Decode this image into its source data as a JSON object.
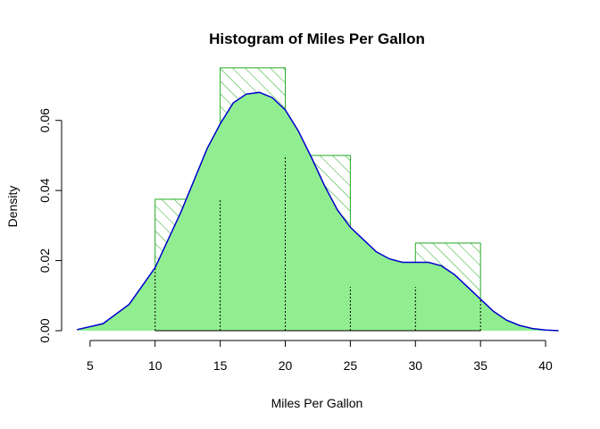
{
  "chart_data": {
    "type": "histogram",
    "title": "Histogram of Miles Per Gallon",
    "xlabel": "Miles Per Gallon",
    "ylabel": "Density",
    "xlim": [
      3.5,
      41.3
    ],
    "ylim": [
      0,
      0.0765
    ],
    "x_ticks": [
      "5",
      "10",
      "15",
      "20",
      "25",
      "30",
      "35",
      "40"
    ],
    "y_ticks": [
      "0.00",
      "0.02",
      "0.04",
      "0.06"
    ],
    "bins": [
      {
        "from": 10,
        "to": 15,
        "density": 0.0375
      },
      {
        "from": 15,
        "to": 20,
        "density": 0.075
      },
      {
        "from": 20,
        "to": 25,
        "density": 0.05
      },
      {
        "from": 25,
        "to": 30,
        "density": 0.0125
      },
      {
        "from": 30,
        "to": 35,
        "density": 0.025
      }
    ],
    "density_curve": {
      "x": [
        4,
        6,
        8,
        10,
        12,
        14,
        15,
        16,
        17,
        18,
        19,
        20,
        21,
        22,
        23,
        24,
        25,
        26,
        27,
        28,
        29,
        30,
        31,
        32,
        33,
        34,
        35,
        36,
        37,
        38,
        39,
        40,
        41
      ],
      "y": [
        0.0003,
        0.002,
        0.0075,
        0.018,
        0.034,
        0.052,
        0.059,
        0.065,
        0.0675,
        0.068,
        0.0665,
        0.063,
        0.057,
        0.0495,
        0.0415,
        0.0345,
        0.0295,
        0.026,
        0.0225,
        0.0205,
        0.0195,
        0.0195,
        0.0195,
        0.0185,
        0.016,
        0.0125,
        0.009,
        0.0055,
        0.003,
        0.0015,
        0.0006,
        0.0002,
        0
      ]
    },
    "colors": {
      "fill": "#90EE90",
      "curve": "#0000CD",
      "bar_border": "#22AA22",
      "hatch": "#22AA22",
      "rug": "#000000"
    }
  }
}
